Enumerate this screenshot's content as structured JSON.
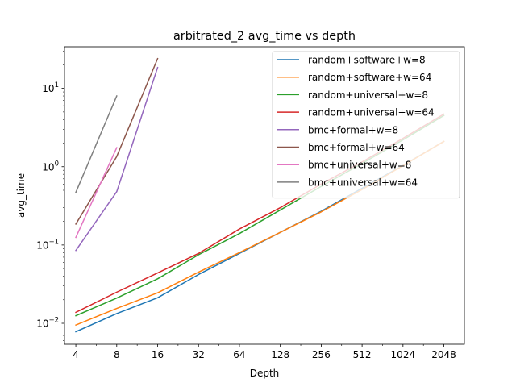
{
  "chart_data": {
    "type": "line",
    "title": "arbitrated_2 avg_time vs depth",
    "xlabel": "Depth",
    "ylabel": "avg_time",
    "x_scale": "log2",
    "y_scale": "log10",
    "xlim": [
      3.3,
      2900
    ],
    "ylim": [
      0.0054,
      34
    ],
    "x_ticks": [
      4,
      8,
      16,
      32,
      64,
      128,
      256,
      512,
      1024,
      2048
    ],
    "x_tick_labels": [
      "4",
      "8",
      "16",
      "32",
      "64",
      "128",
      "256",
      "512",
      "1024",
      "2048"
    ],
    "y_ticks": [
      0.01,
      0.1,
      1,
      10
    ],
    "y_tick_labels": [
      {
        "base": "10",
        "exp": "−2"
      },
      {
        "base": "10",
        "exp": "−1"
      },
      {
        "base": "10",
        "exp": "0"
      },
      {
        "base": "10",
        "exp": "1"
      }
    ],
    "grid": false,
    "legend_position": "upper right",
    "series": [
      {
        "name": "random+software+w=8",
        "color": "#1f77b4",
        "x": [
          4,
          8,
          16,
          32,
          64,
          128,
          256,
          512,
          1024,
          2048
        ],
        "y": [
          0.0078,
          0.0133,
          0.0212,
          0.042,
          0.078,
          0.145,
          0.27,
          0.53,
          1.04,
          2.1
        ]
      },
      {
        "name": "random+software+w=64",
        "color": "#ff7f0e",
        "x": [
          4,
          8,
          16,
          32,
          64,
          128,
          256,
          512,
          1024,
          2048
        ],
        "y": [
          0.0095,
          0.0155,
          0.0245,
          0.045,
          0.08,
          0.145,
          0.265,
          0.51,
          1.03,
          2.1
        ]
      },
      {
        "name": "random+universal+w=8",
        "color": "#2ca02c",
        "x": [
          4,
          8,
          16,
          32,
          64,
          128,
          256,
          512,
          1024,
          2048
        ],
        "y": [
          0.0125,
          0.021,
          0.037,
          0.075,
          0.14,
          0.28,
          0.56,
          1.1,
          2.2,
          4.5
        ]
      },
      {
        "name": "random+universal+w=64",
        "color": "#d62728",
        "x": [
          4,
          8,
          16,
          32,
          64,
          128,
          256,
          512,
          1024,
          2048
        ],
        "y": [
          0.0138,
          0.025,
          0.044,
          0.078,
          0.16,
          0.3,
          0.6,
          1.15,
          2.3,
          4.7
        ]
      },
      {
        "name": "bmc+formal+w=8",
        "color": "#9467bd",
        "x": [
          4,
          8,
          16
        ],
        "y": [
          0.085,
          0.48,
          18.5
        ]
      },
      {
        "name": "bmc+formal+w=64",
        "color": "#8c564b",
        "x": [
          4,
          8,
          16
        ],
        "y": [
          0.185,
          1.35,
          24
        ]
      },
      {
        "name": "bmc+universal+w=8",
        "color": "#e377c2",
        "x": [
          4,
          8
        ],
        "y": [
          0.125,
          1.75
        ]
      },
      {
        "name": "bmc+universal+w=64",
        "color": "#7f7f7f",
        "x": [
          4,
          8
        ],
        "y": [
          0.47,
          8.0
        ]
      }
    ]
  }
}
